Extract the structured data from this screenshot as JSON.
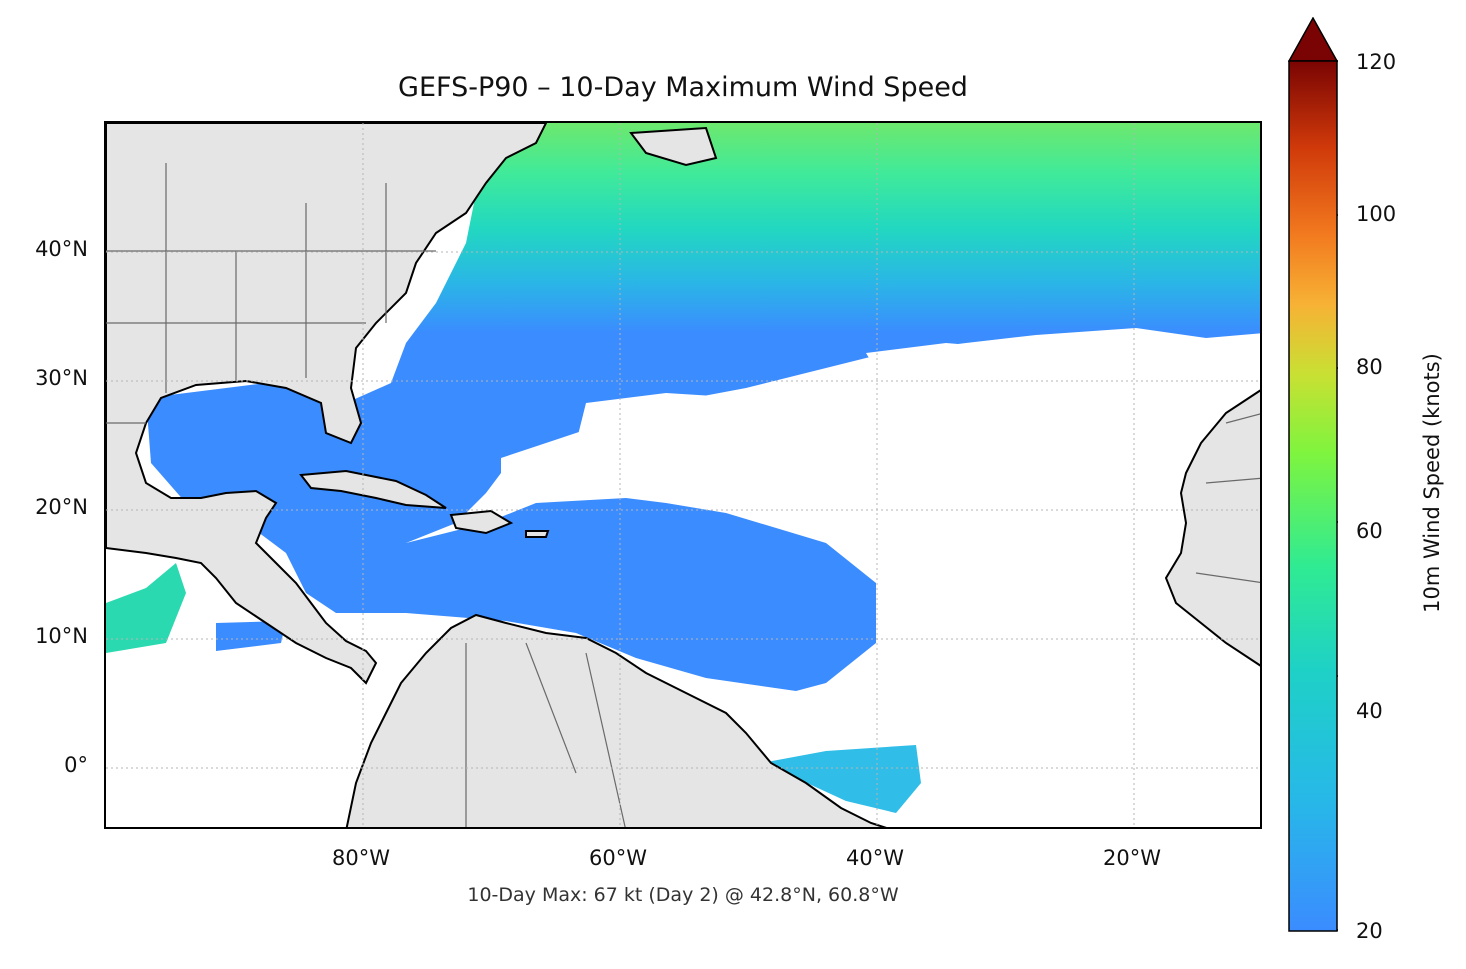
{
  "title": "GEFS-P90 – 10-Day Maximum Wind Speed",
  "footer": "10-Day Max: 67 kt (Day 2) @ 42.8°N, 60.8°W",
  "map": {
    "x_ticks": [
      "80°W",
      "60°W",
      "40°W",
      "20°W"
    ],
    "y_ticks": [
      "40°N",
      "30°N",
      "20°N",
      "10°N",
      "0°"
    ],
    "land_color": "#e5e5e5",
    "coast_color": "#000000",
    "wind_colors": {
      "low": "#3b8cff",
      "mid": "#1ecfc8",
      "mid_high": "#2ee8a0",
      "high": "#9bf53c"
    }
  },
  "colorbar": {
    "label": "10m Wind Speed (knots)",
    "ticks": [
      "120",
      "100",
      "80",
      "60",
      "40",
      "20"
    ],
    "range": [
      20,
      120
    ],
    "extend": "max"
  }
}
